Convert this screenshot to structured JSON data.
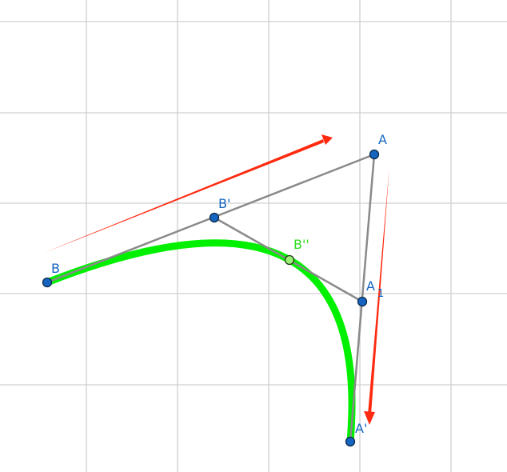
{
  "points": {
    "B": {
      "label": "B"
    },
    "B_prime": {
      "label": "B'"
    },
    "A": {
      "label": "A"
    },
    "A1": {
      "label": "A",
      "subscript": "1"
    },
    "A_prime": {
      "label": "A'"
    },
    "B_double_prime": {
      "label": "B''"
    }
  },
  "colors": {
    "grid": "#d0d0d0",
    "segment": "#8a8a8a",
    "point": "#1565c0",
    "curve": "#00f000",
    "arrow": "#ff2a10",
    "label_blue": "#1565c0",
    "label_green": "#2fdc1e"
  }
}
